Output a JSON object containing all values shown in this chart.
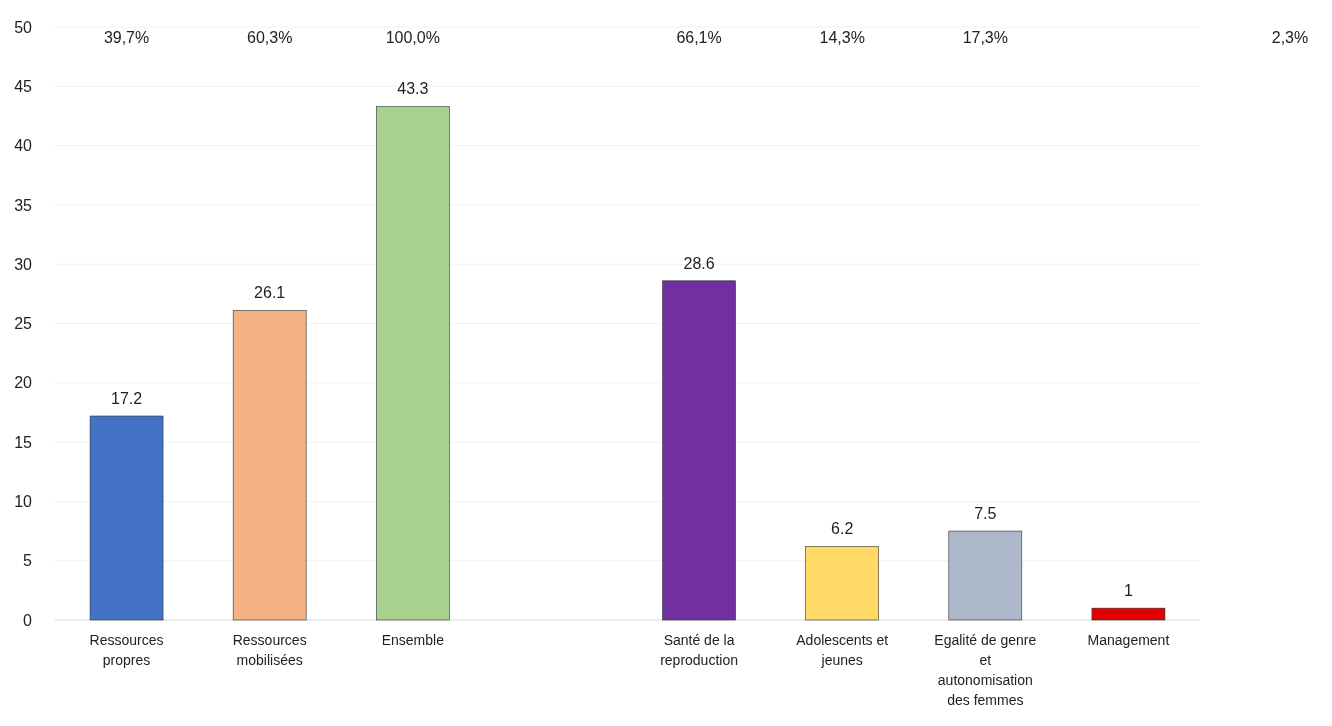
{
  "chart_data": {
    "type": "bar",
    "categories": [
      "Ressources propres",
      "Ressources mobilisées",
      "Ensemble",
      null,
      "Santé de la reproduction",
      "Adolescents et jeunes",
      "Egalité de genre et autonomisation des femmes",
      "Management"
    ],
    "values": [
      17.2,
      26.1,
      43.3,
      null,
      28.6,
      6.2,
      7.5,
      1
    ],
    "colors": [
      "#4472c4",
      "#f4b183",
      "#a9d18e",
      null,
      "#7030a0",
      "#ffd966",
      "#adb9ca",
      "#e00000"
    ],
    "data_labels": true,
    "ylim": [
      0,
      50
    ],
    "yticks": [
      0,
      5,
      10,
      15,
      20,
      25,
      30,
      35,
      40,
      45,
      50
    ],
    "grid": "y",
    "annotations": [
      "39,7%",
      "60,3%",
      "100,0%",
      "66,1%",
      "14,3%",
      "17,3%",
      "2,3%"
    ]
  }
}
